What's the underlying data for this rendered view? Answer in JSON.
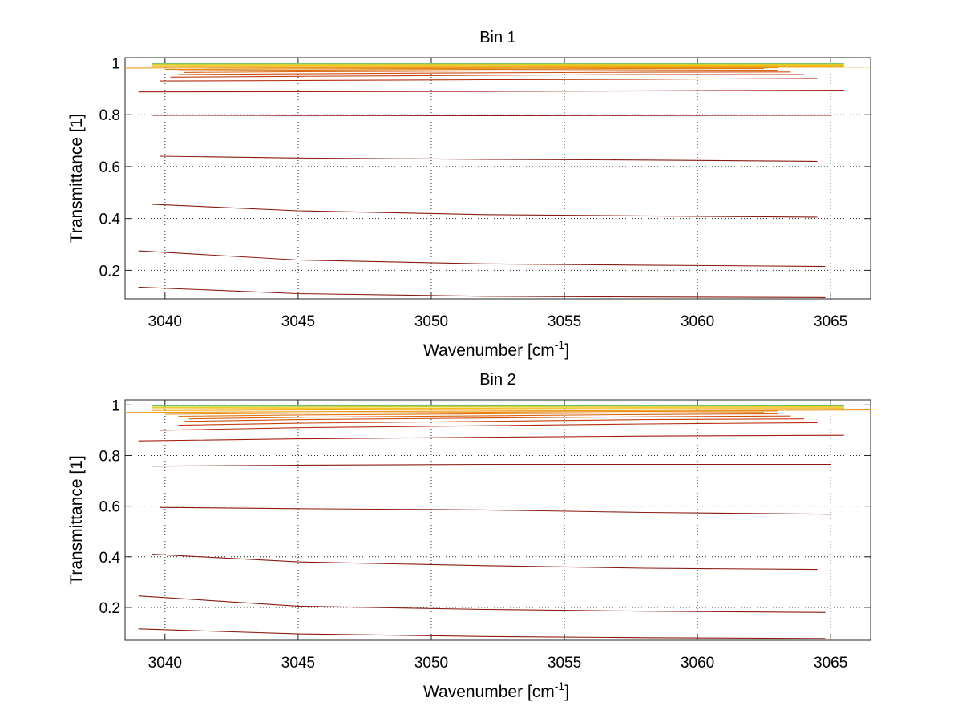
{
  "chart_data": [
    {
      "type": "line",
      "title": "Bin 1",
      "xlabel": "Wavenumber [cm",
      "xlabel_sup": "-1",
      "xlabel_suffix": "]",
      "ylabel": "Transmittance [1]",
      "xlim": [
        3038.5,
        3066.5
      ],
      "ylim": [
        0.09,
        1.02
      ],
      "xticks": [
        3040,
        3045,
        3050,
        3055,
        3060,
        3065
      ],
      "xtick_labels": [
        "3040",
        "3045",
        "3050",
        "3055",
        "3060",
        "3065"
      ],
      "yticks": [
        0.2,
        0.4,
        0.6,
        0.8,
        1.0
      ],
      "ytick_labels": [
        "0.2",
        "0.4",
        "0.6",
        "0.8",
        "1"
      ],
      "grid": true,
      "series": [
        {
          "color": "#8b1a10",
          "x": [
            3039.0,
            3045,
            3052,
            3058,
            3064.8
          ],
          "y": [
            0.135,
            0.11,
            0.1,
            0.097,
            0.095
          ]
        },
        {
          "color": "#8b1a10",
          "x": [
            3039.0,
            3045,
            3052,
            3058,
            3064.8
          ],
          "y": [
            0.275,
            0.24,
            0.225,
            0.22,
            0.215
          ]
        },
        {
          "color": "#8b1a10",
          "x": [
            3039.5,
            3045,
            3052,
            3058,
            3064.5
          ],
          "y": [
            0.455,
            0.43,
            0.415,
            0.41,
            0.405
          ]
        },
        {
          "color": "#8b1a10",
          "x": [
            3039.8,
            3045,
            3052,
            3058,
            3064.5
          ],
          "y": [
            0.64,
            0.633,
            0.628,
            0.625,
            0.62
          ]
        },
        {
          "color": "#8b1a10",
          "x": [
            3039.5,
            3045,
            3052,
            3058,
            3065.0
          ],
          "y": [
            0.798,
            0.797,
            0.796,
            0.797,
            0.798
          ]
        },
        {
          "color": "#a31d0e",
          "x": [
            3039.0,
            3045,
            3052,
            3058,
            3065.5
          ],
          "y": [
            0.888,
            0.889,
            0.89,
            0.892,
            0.895
          ]
        },
        {
          "color": "#b52a0d",
          "x": [
            3039.8,
            3045,
            3052,
            3058,
            3064.5
          ],
          "y": [
            0.93,
            0.932,
            0.935,
            0.937,
            0.94
          ]
        },
        {
          "color": "#c33d0e",
          "x": [
            3040.2,
            3045,
            3052,
            3058,
            3064.0
          ],
          "y": [
            0.945,
            0.948,
            0.952,
            0.955,
            0.955
          ]
        },
        {
          "color": "#cd4f0f",
          "x": [
            3040.5,
            3045,
            3052,
            3058,
            3063.5
          ],
          "y": [
            0.955,
            0.958,
            0.962,
            0.964,
            0.965
          ]
        },
        {
          "color": "#d66210",
          "x": [
            3040.7,
            3045,
            3052,
            3058,
            3063.0
          ],
          "y": [
            0.963,
            0.966,
            0.969,
            0.971,
            0.972
          ]
        },
        {
          "color": "#de7511",
          "x": [
            3040.5,
            3045,
            3052,
            3058,
            3062.5
          ],
          "y": [
            0.97,
            0.972,
            0.975,
            0.977,
            0.978
          ]
        },
        {
          "color": "#e58812",
          "x": [
            3040.0,
            3045,
            3052,
            3058,
            3063.0
          ],
          "y": [
            0.975,
            0.977,
            0.979,
            0.98,
            0.981
          ]
        },
        {
          "color": "#ec9a14",
          "x": [
            3038.5,
            3045,
            3052,
            3058,
            3066.5
          ],
          "y": [
            0.98,
            0.981,
            0.982,
            0.983,
            0.984
          ]
        },
        {
          "color": "#f1ab17",
          "x": [
            3039.5,
            3045,
            3052,
            3058,
            3065.5
          ],
          "y": [
            0.985,
            0.986,
            0.987,
            0.988,
            0.988
          ]
        },
        {
          "color": "#f5bd1b",
          "x": [
            3039.5,
            3045,
            3052,
            3058,
            3065.5
          ],
          "y": [
            0.989,
            0.99,
            0.99,
            0.991,
            0.991
          ]
        },
        {
          "color": "#e9cf22",
          "x": [
            3039.5,
            3045,
            3052,
            3058,
            3065.5
          ],
          "y": [
            0.993,
            0.993,
            0.994,
            0.994,
            0.994
          ]
        },
        {
          "color": "#a9d23c",
          "x": [
            3039.5,
            3045,
            3052,
            3058,
            3065.5
          ],
          "y": [
            0.996,
            0.996,
            0.996,
            0.996,
            0.996
          ]
        },
        {
          "color": "#5dc08a",
          "x": [
            3039.5,
            3045,
            3052,
            3058,
            3065.5
          ],
          "y": [
            0.998,
            0.998,
            0.998,
            0.998,
            0.998
          ]
        }
      ]
    },
    {
      "type": "line",
      "title": "Bin 2",
      "xlabel": "Wavenumber [cm",
      "xlabel_sup": "-1",
      "xlabel_suffix": "]",
      "ylabel": "Transmittance [1]",
      "xlim": [
        3038.5,
        3066.5
      ],
      "ylim": [
        0.07,
        1.02
      ],
      "xticks": [
        3040,
        3045,
        3050,
        3055,
        3060,
        3065
      ],
      "xtick_labels": [
        "3040",
        "3045",
        "3050",
        "3055",
        "3060",
        "3065"
      ],
      "yticks": [
        0.2,
        0.4,
        0.6,
        0.8,
        1.0
      ],
      "ytick_labels": [
        "0.2",
        "0.4",
        "0.6",
        "0.8",
        "1"
      ],
      "grid": true,
      "series": [
        {
          "color": "#8b1a10",
          "x": [
            3039.0,
            3045,
            3052,
            3058,
            3064.8
          ],
          "y": [
            0.115,
            0.095,
            0.085,
            0.08,
            0.077
          ]
        },
        {
          "color": "#8b1a10",
          "x": [
            3039.0,
            3045,
            3052,
            3058,
            3064.8
          ],
          "y": [
            0.245,
            0.205,
            0.192,
            0.185,
            0.18
          ]
        },
        {
          "color": "#8b1a10",
          "x": [
            3039.5,
            3045,
            3052,
            3058,
            3064.5
          ],
          "y": [
            0.41,
            0.38,
            0.365,
            0.355,
            0.35
          ]
        },
        {
          "color": "#8b1a10",
          "x": [
            3039.8,
            3045,
            3052,
            3058,
            3065.0
          ],
          "y": [
            0.595,
            0.59,
            0.585,
            0.575,
            0.568
          ]
        },
        {
          "color": "#8b1a10",
          "x": [
            3039.5,
            3045,
            3052,
            3058,
            3065.0
          ],
          "y": [
            0.758,
            0.762,
            0.765,
            0.765,
            0.765
          ]
        },
        {
          "color": "#a31d0e",
          "x": [
            3039.0,
            3045,
            3052,
            3058,
            3065.5
          ],
          "y": [
            0.858,
            0.866,
            0.872,
            0.877,
            0.88
          ]
        },
        {
          "color": "#b52a0d",
          "x": [
            3039.8,
            3045,
            3052,
            3058,
            3064.5
          ],
          "y": [
            0.9,
            0.91,
            0.918,
            0.925,
            0.93
          ]
        },
        {
          "color": "#c33d0e",
          "x": [
            3040.5,
            3045,
            3052,
            3058,
            3064.0
          ],
          "y": [
            0.92,
            0.928,
            0.935,
            0.942,
            0.945
          ]
        },
        {
          "color": "#cd4f0f",
          "x": [
            3040.7,
            3045,
            3052,
            3058,
            3063.5
          ],
          "y": [
            0.935,
            0.942,
            0.948,
            0.953,
            0.956
          ]
        },
        {
          "color": "#d66210",
          "x": [
            3040.9,
            3045,
            3052,
            3058,
            3063.0
          ],
          "y": [
            0.945,
            0.951,
            0.957,
            0.962,
            0.965
          ]
        },
        {
          "color": "#de7511",
          "x": [
            3040.5,
            3045,
            3052,
            3058,
            3062.5
          ],
          "y": [
            0.955,
            0.96,
            0.965,
            0.968,
            0.97
          ]
        },
        {
          "color": "#e58812",
          "x": [
            3040.0,
            3045,
            3052,
            3058,
            3063.0
          ],
          "y": [
            0.963,
            0.967,
            0.971,
            0.974,
            0.976
          ]
        },
        {
          "color": "#ec9a14",
          "x": [
            3038.5,
            3045,
            3052,
            3058,
            3066.5
          ],
          "y": [
            0.97,
            0.973,
            0.976,
            0.978,
            0.98
          ]
        },
        {
          "color": "#f1ab17",
          "x": [
            3039.5,
            3045,
            3052,
            3058,
            3065.5
          ],
          "y": [
            0.978,
            0.98,
            0.982,
            0.984,
            0.985
          ]
        },
        {
          "color": "#f5bd1b",
          "x": [
            3039.5,
            3045,
            3052,
            3058,
            3065.5
          ],
          "y": [
            0.985,
            0.986,
            0.987,
            0.988,
            0.989
          ]
        },
        {
          "color": "#e9cf22",
          "x": [
            3039.5,
            3045,
            3052,
            3058,
            3065.5
          ],
          "y": [
            0.99,
            0.991,
            0.992,
            0.992,
            0.993
          ]
        },
        {
          "color": "#a9d23c",
          "x": [
            3039.5,
            3045,
            3052,
            3058,
            3065.5
          ],
          "y": [
            0.995,
            0.995,
            0.995,
            0.996,
            0.996
          ]
        },
        {
          "color": "#3fae99",
          "x": [
            3039.5,
            3045,
            3052,
            3058,
            3065.5
          ],
          "y": [
            0.998,
            0.998,
            0.998,
            0.998,
            0.998
          ]
        }
      ]
    }
  ]
}
